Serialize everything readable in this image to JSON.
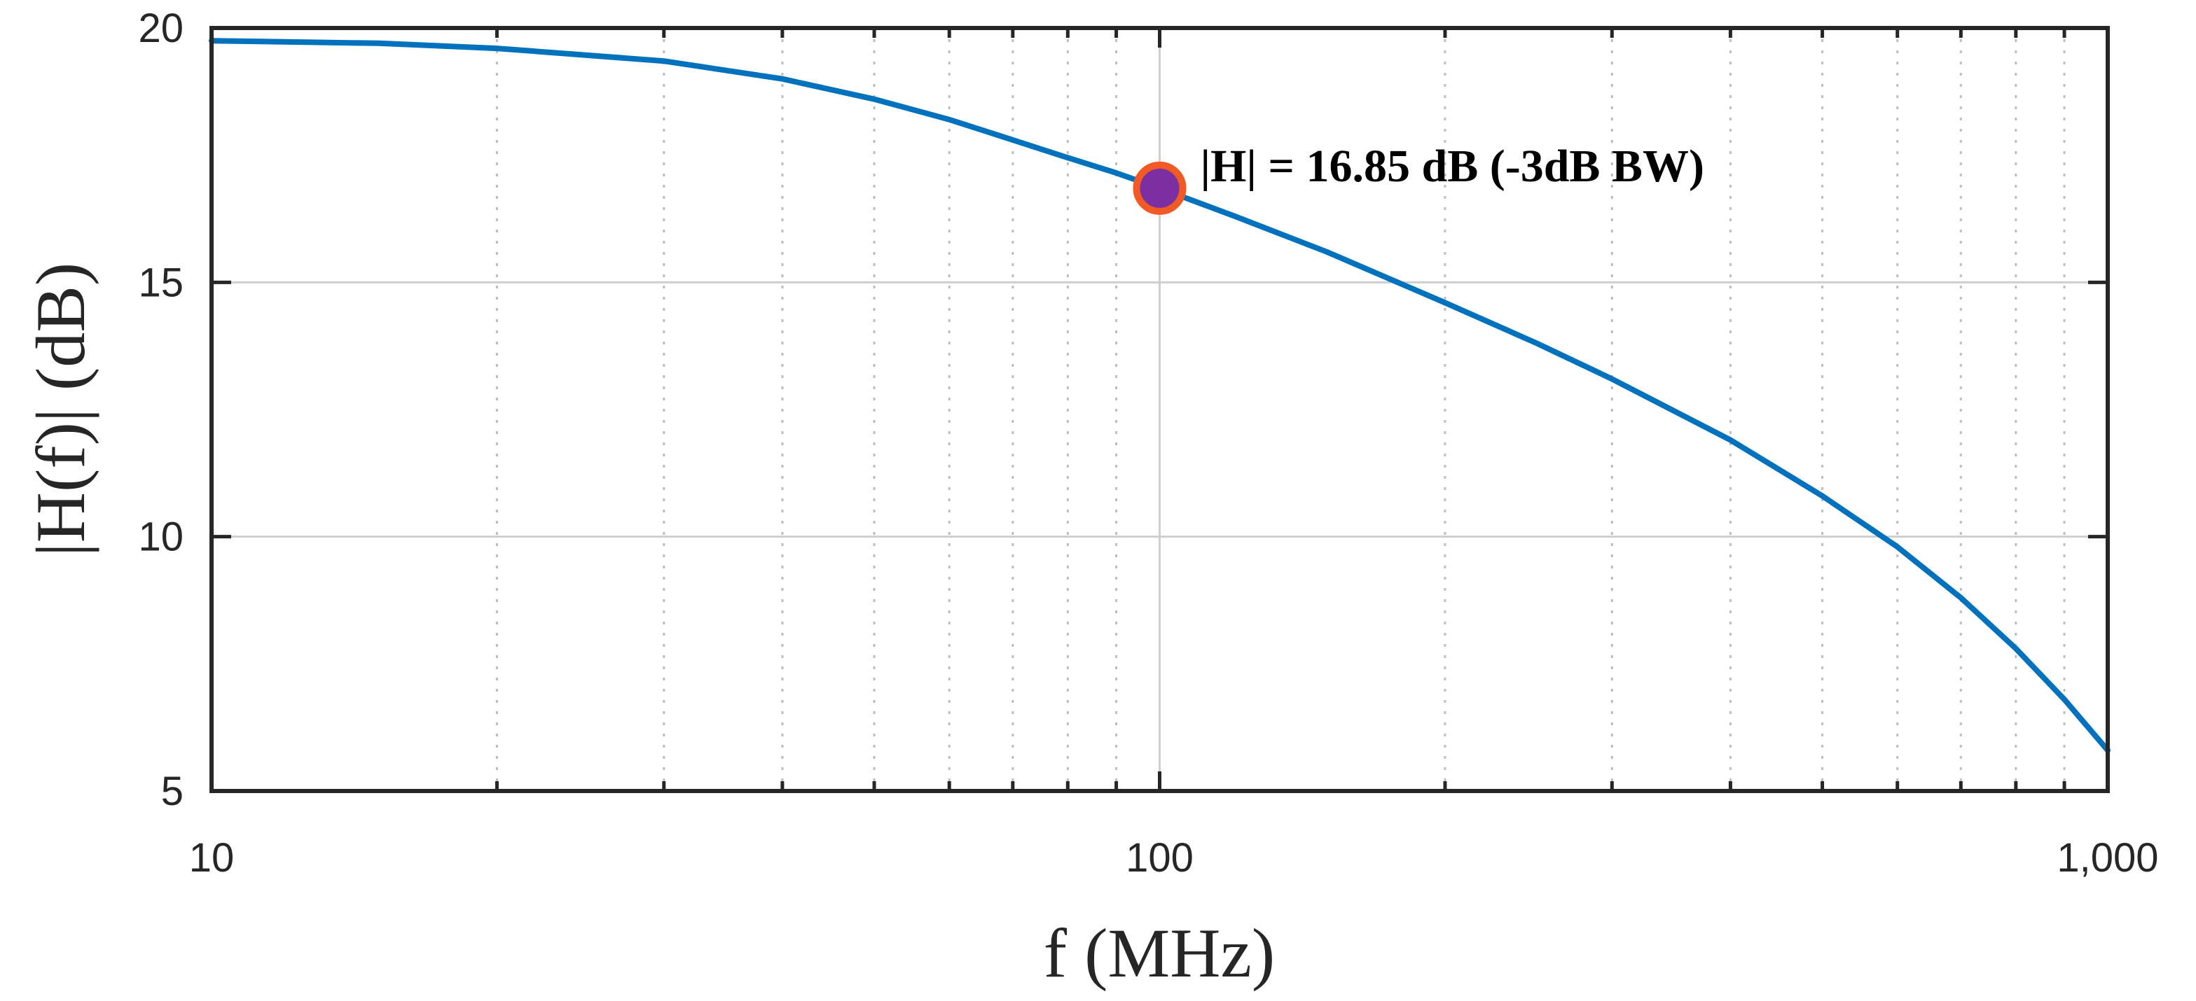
{
  "chart_data": {
    "type": "line",
    "xscale": "log",
    "xlim": [
      10,
      1000
    ],
    "ylim": [
      5,
      20
    ],
    "xlabel": "f (MHz)",
    "ylabel": "|H(f)| (dB)",
    "xticks": [
      {
        "value": 10,
        "label": "10"
      },
      {
        "value": 100,
        "label": "100"
      },
      {
        "value": 1000,
        "label": "1,000"
      }
    ],
    "yticks": [
      {
        "value": 5,
        "label": "5"
      },
      {
        "value": 10,
        "label": "10"
      },
      {
        "value": 15,
        "label": "15"
      },
      {
        "value": 20,
        "label": "20"
      }
    ],
    "grid": true,
    "series": [
      {
        "color": "#0072bd",
        "x": [
          10,
          15,
          20,
          30,
          40,
          50,
          60,
          70,
          80,
          90,
          100,
          120,
          150,
          200,
          250,
          300,
          400,
          500,
          600,
          700,
          800,
          900,
          1000
        ],
        "y": [
          19.75,
          19.7,
          19.6,
          19.35,
          19.0,
          18.6,
          18.2,
          17.8,
          17.45,
          17.15,
          16.85,
          16.3,
          15.6,
          14.6,
          13.8,
          13.1,
          11.9,
          10.8,
          9.8,
          8.8,
          7.8,
          6.8,
          5.8
        ]
      }
    ],
    "annotations": [
      {
        "x": 100,
        "y": 16.85,
        "text": "|H| = 16.85 dB (-3dB BW)",
        "marker_fill": "#7b2fa0",
        "marker_edge": "#f15a24"
      }
    ]
  }
}
